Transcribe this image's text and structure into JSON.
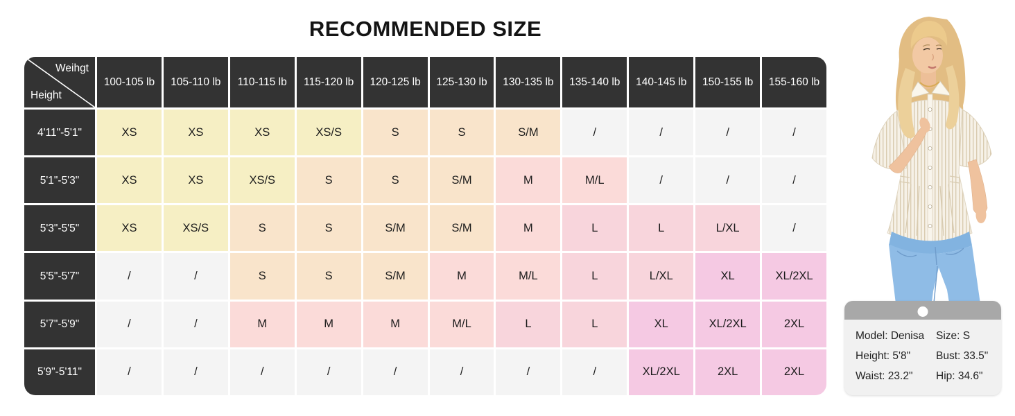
{
  "title": "RECOMMENDED SIZE",
  "table": {
    "corner": {
      "top": "Weihgt",
      "bottom": "Height"
    },
    "columns": [
      "100-105 lb",
      "105-110 lb",
      "110-115 lb",
      "115-120 lb",
      "120-125 lb",
      "125-130 lb",
      "130-135 lb",
      "135-140 lb",
      "140-145 lb",
      "150-155 lb",
      "155-160 lb"
    ],
    "rows": [
      {
        "height": "4'11\"-5'1\"",
        "cells": [
          "XS",
          "XS",
          "XS",
          "XS/S",
          "S",
          "S",
          "S/M",
          "/",
          "/",
          "/",
          "/"
        ]
      },
      {
        "height": "5'1\"-5'3\"",
        "cells": [
          "XS",
          "XS",
          "XS/S",
          "S",
          "S",
          "S/M",
          "M",
          "M/L",
          "/",
          "/",
          "/"
        ]
      },
      {
        "height": "5'3\"-5'5\"",
        "cells": [
          "XS",
          "XS/S",
          "S",
          "S",
          "S/M",
          "S/M",
          "M",
          "L",
          "L",
          "L/XL",
          "/"
        ]
      },
      {
        "height": "5'5\"-5'7\"",
        "cells": [
          "/",
          "/",
          "S",
          "S",
          "S/M",
          "M",
          "M/L",
          "L",
          "L/XL",
          "XL",
          "XL/2XL"
        ]
      },
      {
        "height": "5'7\"-5'9\"",
        "cells": [
          "/",
          "/",
          "M",
          "M",
          "M",
          "M/L",
          "L",
          "L",
          "XL",
          "XL/2XL",
          "2XL"
        ]
      },
      {
        "height": "5'9\"-5'11\"",
        "cells": [
          "/",
          "/",
          "/",
          "/",
          "/",
          "/",
          "/",
          "/",
          "XL/2XL",
          "2XL",
          "2XL"
        ]
      }
    ]
  },
  "colors": {
    "header_bg": "#333333",
    "header_text": "#ffffff",
    "xs": "#f6efc4",
    "s": "#f9e4cb",
    "m": "#fbdbd9",
    "l": "#f8d5dc",
    "xl": "#f5c9e3",
    "na": "#f4f4f4"
  },
  "size_color_map": {
    "XS": "xs",
    "XS/S": "xs",
    "S": "s",
    "S/M": "s",
    "M": "m",
    "M/L": "m",
    "L": "l",
    "L/XL": "l",
    "XL": "xl",
    "XL/2XL": "xl",
    "2XL": "xl",
    "/": "na"
  },
  "model_card": {
    "rows": [
      {
        "left": "Model: Denisa",
        "right": "Size: S"
      },
      {
        "left": "Height: 5'8\"",
        "right": "Bust: 33.5\""
      },
      {
        "left": "Waist: 23.2\"",
        "right": "Hip: 34.6\""
      }
    ]
  }
}
